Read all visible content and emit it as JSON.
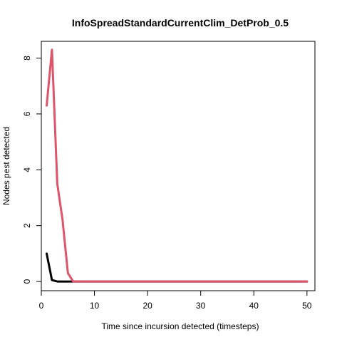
{
  "chart_data": {
    "type": "line",
    "title": "InfoSpreadStandardCurrentClim_DetProb_0.5",
    "xlabel": "Time since incursion detected (timesteps)",
    "ylabel": "Nodes pest detected",
    "xlim": [
      0,
      51.5
    ],
    "ylim": [
      -0.33,
      8.6
    ],
    "x_ticks": [
      0,
      10,
      20,
      30,
      40,
      50
    ],
    "y_ticks": [
      0,
      2,
      4,
      6,
      8
    ],
    "grid": false,
    "legend": "none",
    "series": [
      {
        "color": "#000000",
        "x": [
          1,
          2,
          3,
          4,
          5,
          6,
          7,
          8,
          9,
          10,
          11,
          12,
          13,
          14,
          15,
          16,
          17,
          18,
          19,
          20,
          21,
          22,
          23,
          24,
          25,
          26,
          27,
          28,
          29,
          30,
          31,
          32,
          33,
          34,
          35,
          36,
          37,
          38,
          39,
          40,
          41,
          42,
          43,
          44,
          45,
          46,
          47,
          48,
          49,
          50
        ],
        "y": [
          1.0,
          0.05,
          0,
          0,
          0,
          0,
          0,
          0,
          0,
          0,
          0,
          0,
          0,
          0,
          0,
          0,
          0,
          0,
          0,
          0,
          0,
          0,
          0,
          0,
          0,
          0,
          0,
          0,
          0,
          0,
          0,
          0,
          0,
          0,
          0,
          0,
          0,
          0,
          0,
          0,
          0,
          0,
          0,
          0,
          0,
          0,
          0,
          0,
          0,
          0
        ]
      },
      {
        "color": "#df536b",
        "x": [
          1,
          2,
          3,
          4,
          5,
          6,
          7,
          8,
          9,
          10,
          11,
          12,
          13,
          14,
          15,
          16,
          17,
          18,
          19,
          20,
          21,
          22,
          23,
          24,
          25,
          26,
          27,
          28,
          29,
          30,
          31,
          32,
          33,
          34,
          35,
          36,
          37,
          38,
          39,
          40,
          41,
          42,
          43,
          44,
          45,
          46,
          47,
          48,
          49,
          50
        ],
        "y": [
          6.3,
          8.3,
          3.5,
          2.2,
          0.3,
          0.0,
          0,
          0,
          0,
          0,
          0,
          0,
          0,
          0,
          0,
          0,
          0,
          0,
          0,
          0,
          0,
          0,
          0,
          0,
          0,
          0,
          0,
          0,
          0,
          0,
          0,
          0,
          0,
          0,
          0,
          0,
          0,
          0,
          0,
          0,
          0,
          0,
          0,
          0,
          0,
          0,
          0,
          0,
          0,
          0
        ]
      }
    ]
  }
}
